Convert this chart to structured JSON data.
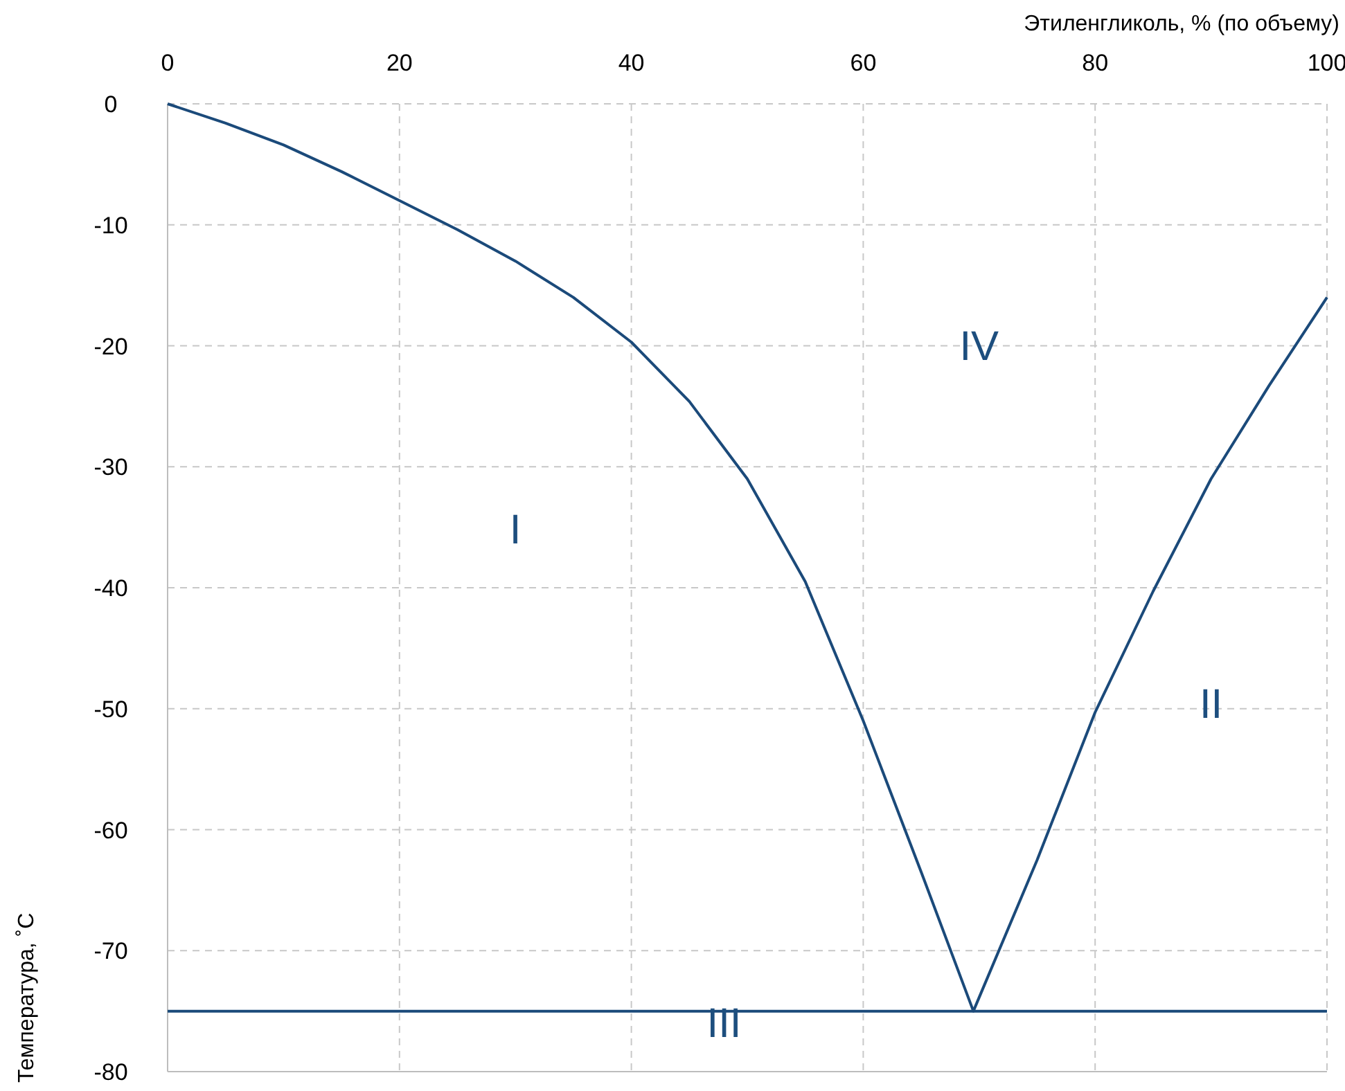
{
  "chart_data": {
    "type": "line",
    "xlabel": "Этиленгликоль, % (по объему)",
    "ylabel": "Температура, ˚С",
    "xlim": [
      0,
      100
    ],
    "xticks": [
      0,
      20,
      40,
      60,
      80,
      100
    ],
    "ylim": [
      -80,
      0
    ],
    "yticks": [
      0,
      -10,
      -20,
      -30,
      -40,
      -50,
      -60,
      -70,
      -80
    ],
    "grid": true,
    "series": [
      {
        "color": "#1b4a7a",
        "x": [
          0,
          5,
          10,
          15,
          20,
          25,
          30,
          35,
          40,
          45,
          50,
          55,
          60,
          65,
          69.5,
          75,
          80,
          85,
          90,
          95,
          100
        ],
        "values": [
          0,
          -1.6,
          -3.4,
          -5.6,
          -8,
          -10.4,
          -13,
          -16,
          -19.7,
          -24.6,
          -31,
          -39.5,
          -51,
          -63.5,
          -75,
          -62.5,
          -50.3,
          -40.3,
          -31,
          -23.3,
          -16
        ]
      },
      {
        "color": "#1b4a7a",
        "x": [
          0,
          100
        ],
        "values": [
          -75,
          -75
        ]
      }
    ],
    "annotations": [
      "I",
      "IV",
      "II",
      "III"
    ]
  }
}
